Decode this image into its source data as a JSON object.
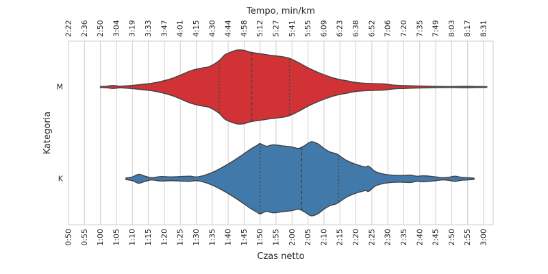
{
  "chart_data": {
    "type": "violin",
    "orientation": "horizontal",
    "xlabel": "Czas netto",
    "ylabel": "Kategoria",
    "top_xlabel": "Tempo, min/km",
    "grid": "vertical",
    "legend": "none",
    "x_unit": "minutes",
    "xlim": [
      50,
      183
    ],
    "bottom_ticks": [
      {
        "v": 50,
        "label": "0:50"
      },
      {
        "v": 55,
        "label": "0:55"
      },
      {
        "v": 60,
        "label": "1:00"
      },
      {
        "v": 65,
        "label": "1:05"
      },
      {
        "v": 70,
        "label": "1:10"
      },
      {
        "v": 75,
        "label": "1:15"
      },
      {
        "v": 80,
        "label": "1:20"
      },
      {
        "v": 85,
        "label": "1:25"
      },
      {
        "v": 90,
        "label": "1:30"
      },
      {
        "v": 95,
        "label": "1:35"
      },
      {
        "v": 100,
        "label": "1:40"
      },
      {
        "v": 105,
        "label": "1:45"
      },
      {
        "v": 110,
        "label": "1:50"
      },
      {
        "v": 115,
        "label": "1:55"
      },
      {
        "v": 120,
        "label": "2:00"
      },
      {
        "v": 125,
        "label": "2:05"
      },
      {
        "v": 130,
        "label": "2:10"
      },
      {
        "v": 135,
        "label": "2:15"
      },
      {
        "v": 140,
        "label": "2:20"
      },
      {
        "v": 145,
        "label": "2:25"
      },
      {
        "v": 150,
        "label": "2:30"
      },
      {
        "v": 155,
        "label": "2:35"
      },
      {
        "v": 160,
        "label": "2:40"
      },
      {
        "v": 165,
        "label": "2:45"
      },
      {
        "v": 170,
        "label": "2:50"
      },
      {
        "v": 175,
        "label": "2:55"
      },
      {
        "v": 180,
        "label": "3:00"
      }
    ],
    "top_ticks": [
      {
        "v": 50,
        "label": "2:22"
      },
      {
        "v": 55,
        "label": "2:36"
      },
      {
        "v": 60,
        "label": "2:50"
      },
      {
        "v": 65,
        "label": "3:04"
      },
      {
        "v": 70,
        "label": "3:19"
      },
      {
        "v": 75,
        "label": "3:33"
      },
      {
        "v": 80,
        "label": "3:47"
      },
      {
        "v": 85,
        "label": "4:01"
      },
      {
        "v": 90,
        "label": "4:15"
      },
      {
        "v": 95,
        "label": "4:30"
      },
      {
        "v": 100,
        "label": "4:44"
      },
      {
        "v": 105,
        "label": "4:58"
      },
      {
        "v": 110,
        "label": "5:12"
      },
      {
        "v": 115,
        "label": "5:27"
      },
      {
        "v": 120,
        "label": "5:41"
      },
      {
        "v": 125,
        "label": "5:55"
      },
      {
        "v": 130,
        "label": "6:09"
      },
      {
        "v": 135,
        "label": "6:23"
      },
      {
        "v": 140,
        "label": "6:38"
      },
      {
        "v": 145,
        "label": "6:52"
      },
      {
        "v": 150,
        "label": "7:06"
      },
      {
        "v": 155,
        "label": "7:20"
      },
      {
        "v": 160,
        "label": "7:35"
      },
      {
        "v": 165,
        "label": "7:49"
      },
      {
        "v": 170,
        "label": "8:03"
      },
      {
        "v": 175,
        "label": "8:17"
      },
      {
        "v": 180,
        "label": "8:31"
      }
    ],
    "series": [
      {
        "name": "M",
        "color": "#d03236",
        "quartiles": [
          97.2,
          107.4,
          119.2
        ],
        "profile": [
          [
            60.0,
            0.012
          ],
          [
            62.0,
            0.022
          ],
          [
            64.0,
            0.04
          ],
          [
            66.0,
            0.022
          ],
          [
            68.0,
            0.03
          ],
          [
            70.0,
            0.045
          ],
          [
            73.0,
            0.07
          ],
          [
            76.0,
            0.1
          ],
          [
            79.0,
            0.15
          ],
          [
            82.0,
            0.22
          ],
          [
            85.0,
            0.32
          ],
          [
            88.0,
            0.43
          ],
          [
            91.0,
            0.5
          ],
          [
            94.0,
            0.55
          ],
          [
            97.0,
            0.7
          ],
          [
            99.0,
            0.87
          ],
          [
            101.0,
            0.95
          ],
          [
            103.0,
            1.0
          ],
          [
            105.0,
            0.99
          ],
          [
            107.0,
            0.94
          ],
          [
            110.0,
            0.9
          ],
          [
            113.0,
            0.86
          ],
          [
            116.0,
            0.83
          ],
          [
            119.0,
            0.78
          ],
          [
            122.0,
            0.66
          ],
          [
            125.0,
            0.52
          ],
          [
            128.0,
            0.4
          ],
          [
            131.0,
            0.3
          ],
          [
            134.0,
            0.22
          ],
          [
            137.0,
            0.17
          ],
          [
            140.0,
            0.12
          ],
          [
            143.0,
            0.1
          ],
          [
            146.0,
            0.09
          ],
          [
            149.0,
            0.08
          ],
          [
            152.0,
            0.05
          ],
          [
            155.0,
            0.04
          ],
          [
            158.0,
            0.03
          ],
          [
            162.0,
            0.022
          ],
          [
            166.0,
            0.015
          ],
          [
            170.0,
            0.012
          ],
          [
            175.0,
            0.018
          ],
          [
            178.0,
            0.012
          ],
          [
            181.0,
            0.01
          ]
        ]
      },
      {
        "name": "K",
        "color": "#4279ab",
        "quartiles": [
          110.0,
          123.0,
          134.6
        ],
        "profile": [
          [
            68.0,
            0.02
          ],
          [
            70.0,
            0.05
          ],
          [
            72.0,
            0.12
          ],
          [
            74.0,
            0.07
          ],
          [
            76.0,
            0.03
          ],
          [
            79.0,
            0.06
          ],
          [
            82.0,
            0.05
          ],
          [
            85.0,
            0.06
          ],
          [
            88.0,
            0.07
          ],
          [
            90.0,
            0.05
          ],
          [
            92.0,
            0.08
          ],
          [
            95.0,
            0.17
          ],
          [
            98.0,
            0.3
          ],
          [
            101.0,
            0.45
          ],
          [
            104.0,
            0.62
          ],
          [
            107.0,
            0.8
          ],
          [
            109.0,
            0.9
          ],
          [
            110.0,
            0.95
          ],
          [
            112.0,
            0.88
          ],
          [
            114.0,
            0.92
          ],
          [
            117.0,
            0.89
          ],
          [
            120.0,
            0.86
          ],
          [
            122.0,
            0.82
          ],
          [
            124.0,
            0.9
          ],
          [
            126.0,
            1.0
          ],
          [
            128.0,
            0.95
          ],
          [
            130.0,
            0.82
          ],
          [
            132.0,
            0.72
          ],
          [
            134.0,
            0.67
          ],
          [
            137.0,
            0.5
          ],
          [
            140.0,
            0.39
          ],
          [
            143.0,
            0.32
          ],
          [
            144.0,
            0.34
          ],
          [
            146.0,
            0.2
          ],
          [
            148.0,
            0.14
          ],
          [
            151.0,
            0.1
          ],
          [
            154.0,
            0.09
          ],
          [
            157.0,
            0.1
          ],
          [
            159.0,
            0.07
          ],
          [
            161.0,
            0.08
          ],
          [
            163.0,
            0.07
          ],
          [
            165.0,
            0.05
          ],
          [
            167.0,
            0.03
          ],
          [
            169.0,
            0.04
          ],
          [
            171.0,
            0.07
          ],
          [
            173.0,
            0.04
          ],
          [
            175.0,
            0.03
          ],
          [
            177.0,
            0.015
          ]
        ]
      }
    ]
  }
}
